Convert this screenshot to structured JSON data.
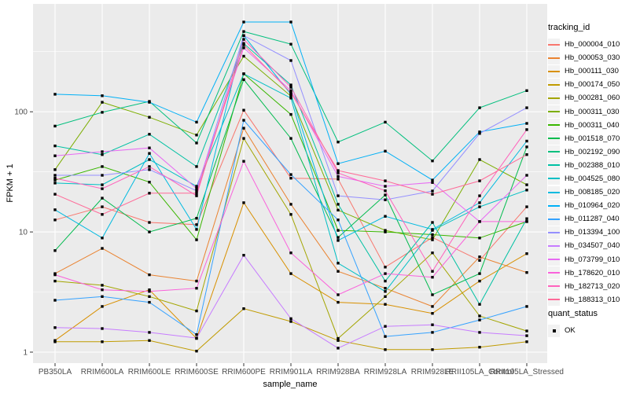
{
  "chart_data": {
    "type": "line",
    "xlabel": "sample_name",
    "ylabel": "FPKM + 1",
    "y_scale": "log10",
    "y_ticks": [
      100,
      10,
      1
    ],
    "y_minor": [
      316.23,
      31.623,
      3.1623
    ],
    "grid": true,
    "legend_position": "right",
    "style": {
      "panel_bg": "#EBEBEB",
      "grid_color": "#FFFFFF",
      "tick_label_color": "#4D4D4D",
      "marker_color": "#000000"
    },
    "categories": [
      "PB350LA",
      "RRIM600LA",
      "RRIM600LE",
      "RRIM600SE",
      "RRIM600PE",
      "RRIM901LA",
      "RRIM928BA",
      "RRIM928LA",
      "RRIM928LE",
      "RRII105LA_Control",
      "RRII105LA_Stressed"
    ],
    "series": [
      {
        "name": "Hb_000004_010",
        "color": "#F8766D",
        "values": [
          12.6,
          16.2,
          12.0,
          11.5,
          103,
          28,
          27.5,
          5.1,
          9.0,
          5.8,
          16.2
        ]
      },
      {
        "name": "Hb_000053_030",
        "color": "#EA8331",
        "values": [
          4.5,
          7.3,
          4.4,
          3.9,
          73,
          17,
          4.7,
          3.4,
          2.4,
          6.2,
          4.6
        ]
      },
      {
        "name": "Hb_000111_030",
        "color": "#D89000",
        "values": [
          1.25,
          2.4,
          3.3,
          1.3,
          17.5,
          4.5,
          2.6,
          2.5,
          2.1,
          3.9,
          6.6
        ]
      },
      {
        "name": "Hb_000174_050",
        "color": "#C09B00",
        "values": [
          1.22,
          1.22,
          1.25,
          1.02,
          2.3,
          1.8,
          1.25,
          1.05,
          1.05,
          1.1,
          1.22
        ]
      },
      {
        "name": "Hb_000281_060",
        "color": "#A3A500",
        "values": [
          3.9,
          3.6,
          2.9,
          2.2,
          60,
          14,
          1.3,
          2.9,
          6.7,
          2.0,
          1.5
        ]
      },
      {
        "name": "Hb_000311_030",
        "color": "#7CAE00",
        "values": [
          33,
          120,
          90,
          64,
          290,
          135,
          15.2,
          10.3,
          8.6,
          40,
          24.7
        ]
      },
      {
        "name": "Hb_000311_040",
        "color": "#39B600",
        "values": [
          27,
          35,
          26,
          8.6,
          207,
          95,
          10.3,
          10.0,
          9.5,
          8.9,
          12.2
        ]
      },
      {
        "name": "Hb_001518_070",
        "color": "#00BB4E",
        "values": [
          7.0,
          19.1,
          10.0,
          13.0,
          185,
          60,
          9.0,
          20.3,
          3.0,
          4.5,
          51
        ]
      },
      {
        "name": "Hb_002192_090",
        "color": "#00BF7D",
        "values": [
          76,
          99,
          122,
          55,
          465,
          365,
          56,
          82,
          39,
          108,
          150
        ]
      },
      {
        "name": "Hb_002388_010",
        "color": "#00C1A3",
        "values": [
          52,
          44,
          65,
          35,
          370,
          167,
          17,
          3.9,
          12.0,
          2.5,
          12.9
        ]
      },
      {
        "name": "Hb_004525_080",
        "color": "#00BFC4",
        "values": [
          25.5,
          24.7,
          40,
          24,
          207,
          130,
          5.5,
          3.2,
          10.3,
          16.2,
          22.3
        ]
      },
      {
        "name": "Hb_008185_020",
        "color": "#00BAE0",
        "values": [
          15.3,
          8.9,
          45,
          10.5,
          430,
          140,
          8.5,
          13.5,
          10.5,
          17.5,
          57
        ]
      },
      {
        "name": "Hb_010964_020",
        "color": "#00B0F6",
        "values": [
          140,
          136,
          120,
          82,
          558,
          558,
          37,
          47,
          27,
          68,
          80
        ]
      },
      {
        "name": "Hb_011287_040",
        "color": "#35A2FF",
        "values": [
          2.7,
          2.9,
          2.6,
          1.4,
          85,
          30,
          12.6,
          1.35,
          1.46,
          1.85,
          2.4
        ]
      },
      {
        "name": "Hb_013394_100",
        "color": "#9590FF",
        "values": [
          29.6,
          29.6,
          33,
          22,
          430,
          267,
          20,
          18.5,
          21.9,
          66,
          108
        ]
      },
      {
        "name": "Hb_034507_040",
        "color": "#C77CFF",
        "values": [
          1.6,
          1.57,
          1.46,
          1.31,
          6.4,
          1.9,
          1.08,
          1.64,
          1.69,
          1.46,
          1.37
        ]
      },
      {
        "name": "Hb_073799_010",
        "color": "#E76BF3",
        "values": [
          43,
          46.5,
          50,
          23,
          340,
          150,
          29,
          24,
          25.8,
          12.2,
          29.6
        ]
      },
      {
        "name": "Hb_178620_010",
        "color": "#FA62DB",
        "values": [
          4.4,
          3.3,
          3.2,
          3.4,
          38.7,
          6.7,
          3.0,
          4.5,
          4.2,
          12.2,
          12.2
        ]
      },
      {
        "name": "Hb_182713_020",
        "color": "#FF62BC",
        "values": [
          28,
          22.9,
          35,
          20,
          400,
          160,
          31,
          22,
          4.7,
          20,
          71
        ]
      },
      {
        "name": "Hb_188313_010",
        "color": "#FF6A98",
        "values": [
          20.6,
          14,
          21,
          21,
          360,
          144,
          32.4,
          26.6,
          20.6,
          26.6,
          44
        ]
      }
    ],
    "legends": {
      "tracking": {
        "title": "tracking_id"
      },
      "quant": {
        "title": "quant_status",
        "item_label": "OK",
        "marker": "black-square"
      }
    }
  }
}
